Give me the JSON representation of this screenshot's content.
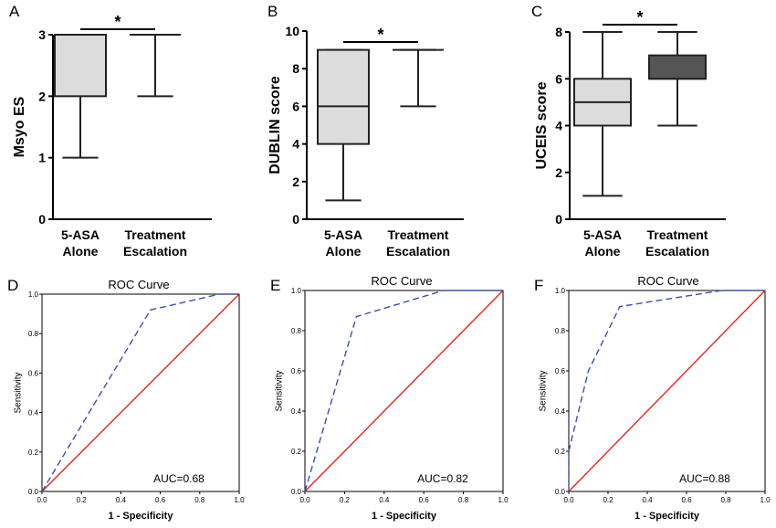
{
  "figure": {
    "panels": [
      {
        "letter": "A"
      },
      {
        "letter": "B"
      },
      {
        "letter": "C"
      },
      {
        "letter": "D"
      },
      {
        "letter": "E"
      },
      {
        "letter": "F"
      }
    ],
    "colors": {
      "box_light": "#dcdcdc",
      "box_dark": "#555555",
      "roc_curve": "#3a4fb8",
      "reference_line": "#e8231f"
    }
  },
  "chart_data": [
    {
      "type": "box",
      "panel": "A",
      "ylabel": "Msyo ES",
      "ylim": [
        0,
        3
      ],
      "yticks": [
        "0",
        "1",
        "2",
        "3"
      ],
      "categories": [
        "5-ASA Alone",
        "Treatment Escalation"
      ],
      "category_lines": [
        [
          "5-ASA",
          "Alone"
        ],
        [
          "Treatment",
          "Escalation"
        ]
      ],
      "boxes": [
        {
          "min": 1,
          "q1": 2,
          "median": 3,
          "q3": 3,
          "max": 3,
          "fill": "light"
        },
        {
          "min": 2,
          "q1": 3,
          "median": 3,
          "q3": 3,
          "max": 3,
          "fill": "light"
        }
      ],
      "significance": "*"
    },
    {
      "type": "box",
      "panel": "B",
      "ylabel": "DUBLIN score",
      "ylim": [
        0,
        10
      ],
      "yticks": [
        "0",
        "2",
        "4",
        "6",
        "8",
        "10"
      ],
      "categories": [
        "5-ASA Alone",
        "Treatment Escalation"
      ],
      "category_lines": [
        [
          "5-ASA",
          "Alone"
        ],
        [
          "Treatment",
          "Escalation"
        ]
      ],
      "boxes": [
        {
          "min": 1,
          "q1": 4,
          "median": 6,
          "q3": 9,
          "max": 9,
          "fill": "light"
        },
        {
          "min": 6,
          "q1": 9,
          "median": 9,
          "q3": 9,
          "max": 9,
          "fill": "light"
        }
      ],
      "significance": "*"
    },
    {
      "type": "box",
      "panel": "C",
      "ylabel": "UCEIS score",
      "ylim": [
        0,
        8
      ],
      "yticks": [
        "0",
        "2",
        "4",
        "6",
        "8"
      ],
      "categories": [
        "5-ASA Alone",
        "Treatment Escalation"
      ],
      "category_lines": [
        [
          "5-ASA",
          "Alone"
        ],
        [
          "Treatment",
          "Escalation"
        ]
      ],
      "boxes": [
        {
          "min": 1,
          "q1": 4,
          "median": 5,
          "q3": 6,
          "max": 8,
          "fill": "light"
        },
        {
          "min": 4,
          "q1": 6,
          "median": 6,
          "q3": 7,
          "max": 8,
          "fill": "dark"
        }
      ],
      "significance": "*"
    },
    {
      "type": "line",
      "panel": "D",
      "title": "ROC Curve",
      "xlabel": "1 - Specificity",
      "ylabel": "Sensitivity",
      "xlim": [
        0,
        1
      ],
      "ylim": [
        0,
        1
      ],
      "ticks": [
        "0.0",
        "0.2",
        "0.4",
        "0.6",
        "0.8",
        "1.0"
      ],
      "curve": {
        "x": [
          0,
          0.55,
          0.9,
          1.0
        ],
        "y": [
          0,
          0.92,
          1.0,
          1.0
        ]
      },
      "reference": {
        "x": [
          0,
          1
        ],
        "y": [
          0,
          1
        ]
      },
      "annotation": "AUC=0.68"
    },
    {
      "type": "line",
      "panel": "E",
      "title": "ROC Curve",
      "xlabel": "1 - Specificity",
      "ylabel": "Sensitivity",
      "xlim": [
        0,
        1
      ],
      "ylim": [
        0,
        1
      ],
      "ticks": [
        "0.0",
        "0.2",
        "0.4",
        "0.6",
        "0.8",
        "1.0"
      ],
      "curve": {
        "x": [
          0,
          0.26,
          0.7,
          1.0
        ],
        "y": [
          0,
          0.87,
          1.0,
          1.0
        ]
      },
      "reference": {
        "x": [
          0,
          1
        ],
        "y": [
          0,
          1
        ]
      },
      "annotation": "AUC=0.82"
    },
    {
      "type": "line",
      "panel": "F",
      "title": "ROC Curve",
      "xlabel": "1 - Specificity",
      "ylabel": "Sensitivity",
      "xlim": [
        0,
        1
      ],
      "ylim": [
        0,
        1
      ],
      "ticks": [
        "0.0",
        "0.2",
        "0.4",
        "0.6",
        "0.8",
        "1.0"
      ],
      "curve": {
        "x": [
          0,
          0.0,
          0.1,
          0.26,
          0.78,
          1.0
        ],
        "y": [
          0,
          0.2,
          0.6,
          0.92,
          1.0,
          1.0
        ]
      },
      "reference": {
        "x": [
          0,
          1
        ],
        "y": [
          0,
          1
        ]
      },
      "annotation": "AUC=0.88"
    }
  ]
}
